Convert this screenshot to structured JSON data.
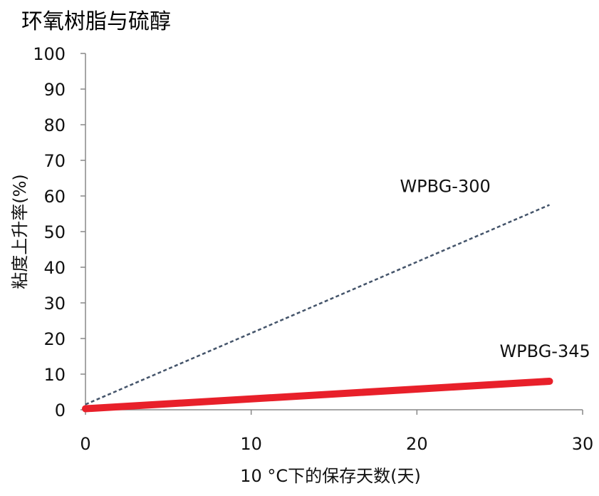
{
  "chart_data": {
    "type": "line",
    "title": "环氧树脂与硫醇",
    "xlabel": "10 °C下的保存天数(天)",
    "ylabel": "粘度上升率(%)",
    "xlim": [
      0,
      30
    ],
    "ylim": [
      0,
      100
    ],
    "x_ticks": [
      "0",
      "10",
      "20",
      "30"
    ],
    "y_ticks": [
      "0",
      "10",
      "20",
      "30",
      "40",
      "50",
      "60",
      "70",
      "80",
      "90",
      "100"
    ],
    "grid": false,
    "series": [
      {
        "name": "WPBG-300",
        "x": [
          0,
          28
        ],
        "y": [
          1.5,
          57.5
        ],
        "color": "#44546a",
        "style": "dashed"
      },
      {
        "name": "WPBG-345",
        "x": [
          0,
          28
        ],
        "y": [
          0.3,
          8
        ],
        "color": "#e8202a",
        "style": "solid-thick"
      }
    ]
  }
}
